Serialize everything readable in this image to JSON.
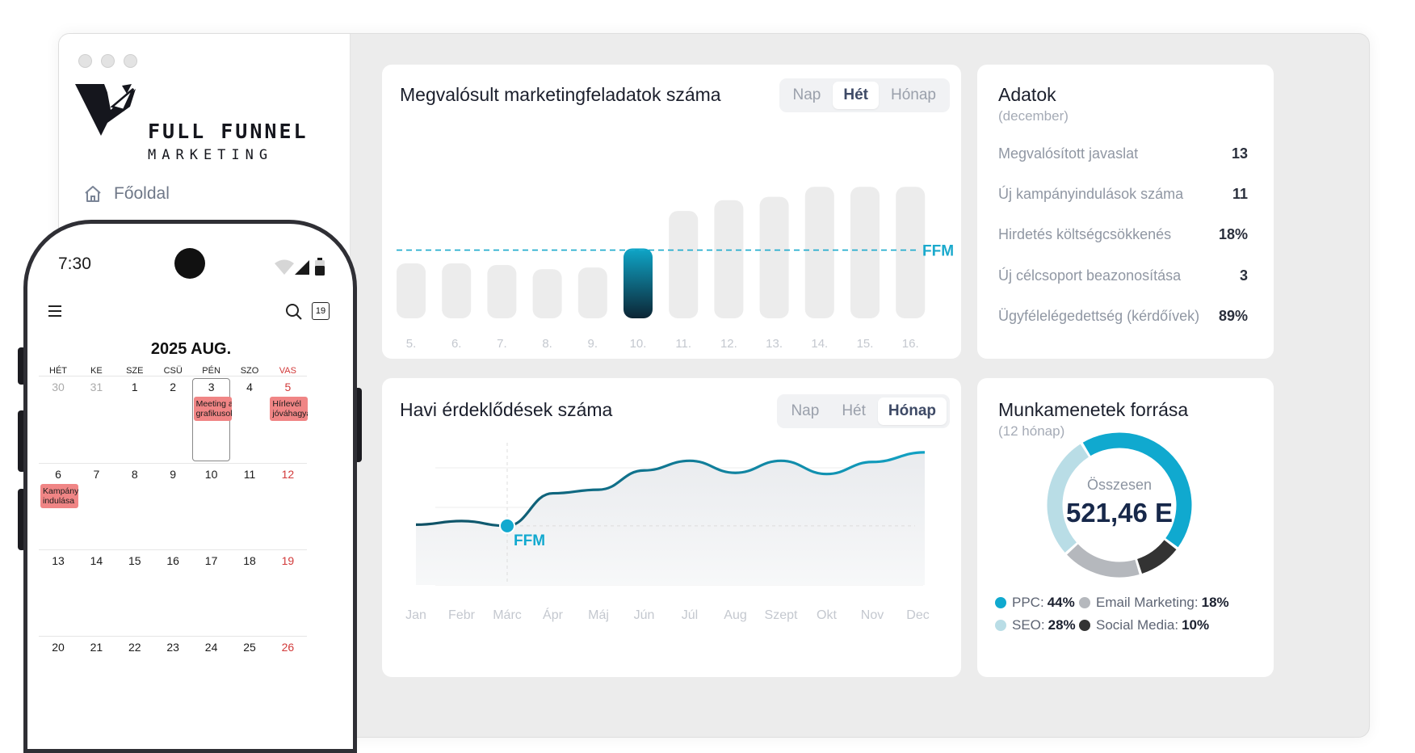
{
  "window": {
    "dots": [
      "",
      "",
      ""
    ]
  },
  "brand": {
    "line1": "FULL FUNNEL",
    "line2": "MARKETING"
  },
  "nav": {
    "home_label": "Főoldal"
  },
  "tasks_card": {
    "title": "Megvalósult marketingfeladatok száma",
    "tabs": [
      "Nap",
      "Hét",
      "Hónap"
    ],
    "active_tab": "Hét",
    "benchmark_label": "FFM"
  },
  "inquiries_card": {
    "title": "Havi érdeklődések száma",
    "tabs": [
      "Nap",
      "Hét",
      "Hónap"
    ],
    "active_tab": "Hónap",
    "marker_label": "FFM"
  },
  "stats_card": {
    "title": "Adatok",
    "subtitle": "(december)",
    "rows": [
      {
        "label": "Megvalósított javaslat",
        "value": "13"
      },
      {
        "label": "Új kampányindulások száma",
        "value": "11"
      },
      {
        "label": "Hirdetés költségcsökkenés",
        "value": "18%"
      },
      {
        "label": "Új célcsoport beazonosítása",
        "value": "3"
      },
      {
        "label": "Ügyfélelégedettség (kérdőívek)",
        "value": "89%"
      }
    ]
  },
  "sessions_card": {
    "title": "Munkamenetek forrása",
    "subtitle": "(12 hónap)",
    "center_label": "Összesen",
    "center_value": "521,46 E",
    "legend": [
      {
        "label": "PPC:",
        "value": "44%",
        "color": "#10a9cf"
      },
      {
        "label": "Email Marketing:",
        "value": "18%",
        "color": "#b5b8bd"
      },
      {
        "label": "SEO:",
        "value": "28%",
        "color": "#b9dde6"
      },
      {
        "label": "Social Media:",
        "value": "10%",
        "color": "#333333"
      }
    ]
  },
  "chart_data": [
    {
      "type": "bar",
      "categories": [
        "5.",
        "6.",
        "7.",
        "8.",
        "9.",
        "10.",
        "11.",
        "12.",
        "13.",
        "14.",
        "15.",
        "16."
      ],
      "values": [
        66,
        66,
        64,
        59,
        61,
        84,
        129,
        142,
        146,
        158,
        158,
        158
      ],
      "highlight_index": 5,
      "benchmark": 82,
      "benchmark_label": "FFM",
      "ylim": [
        0,
        165
      ],
      "colors": {
        "bar": "#ececec",
        "highlight_top": "#0fa6c8",
        "highlight_bottom": "#0c2534",
        "benchmark": "#1aa9cc"
      }
    },
    {
      "type": "area",
      "categories": [
        "Jan",
        "Febr",
        "Márc",
        "Ápr",
        "Máj",
        "Jún",
        "Júl",
        "Aug",
        "Szept",
        "Okt",
        "Nov",
        "Dec"
      ],
      "values": [
        50,
        53,
        49,
        76,
        79,
        95,
        103,
        93,
        103,
        92,
        102,
        110
      ],
      "marker_index": 2,
      "marker_label": "FFM",
      "ylim": [
        0,
        130
      ],
      "colors": {
        "line_start": "#0f4f63",
        "line_end": "#12a2c4",
        "marker": "#12a9cf"
      }
    },
    {
      "type": "pie",
      "variant": "donut",
      "categories": [
        "PPC",
        "Email Marketing",
        "SEO",
        "Social Media"
      ],
      "values": [
        44,
        18,
        28,
        10
      ],
      "colors": [
        "#10a9cf",
        "#b5b8bd",
        "#b9dde6",
        "#333333"
      ]
    }
  ],
  "phone": {
    "time": "7:30",
    "header_date_badge": "19",
    "month_title": "2025 AUG.",
    "weekdays": [
      "HÉT",
      "KE",
      "SZE",
      "CSÜ",
      "PÉN",
      "SZO",
      "VAS"
    ],
    "weeks": [
      [
        "30",
        "31",
        "1",
        "2",
        "3",
        "4",
        "5"
      ],
      [
        "6",
        "7",
        "8",
        "9",
        "10",
        "11",
        "12"
      ],
      [
        "13",
        "14",
        "15",
        "16",
        "17",
        "18",
        "19"
      ],
      [
        "20",
        "21",
        "22",
        "23",
        "24",
        "25",
        "26"
      ]
    ],
    "events": [
      {
        "week": 0,
        "day": 4,
        "text": [
          "Meeting a",
          "grafikusok"
        ]
      },
      {
        "week": 0,
        "day": 6,
        "text": [
          "Hírlevél",
          "jóváhagyás"
        ]
      },
      {
        "week": 1,
        "day": 0,
        "text": [
          "Kampány",
          "indulása"
        ]
      }
    ]
  }
}
